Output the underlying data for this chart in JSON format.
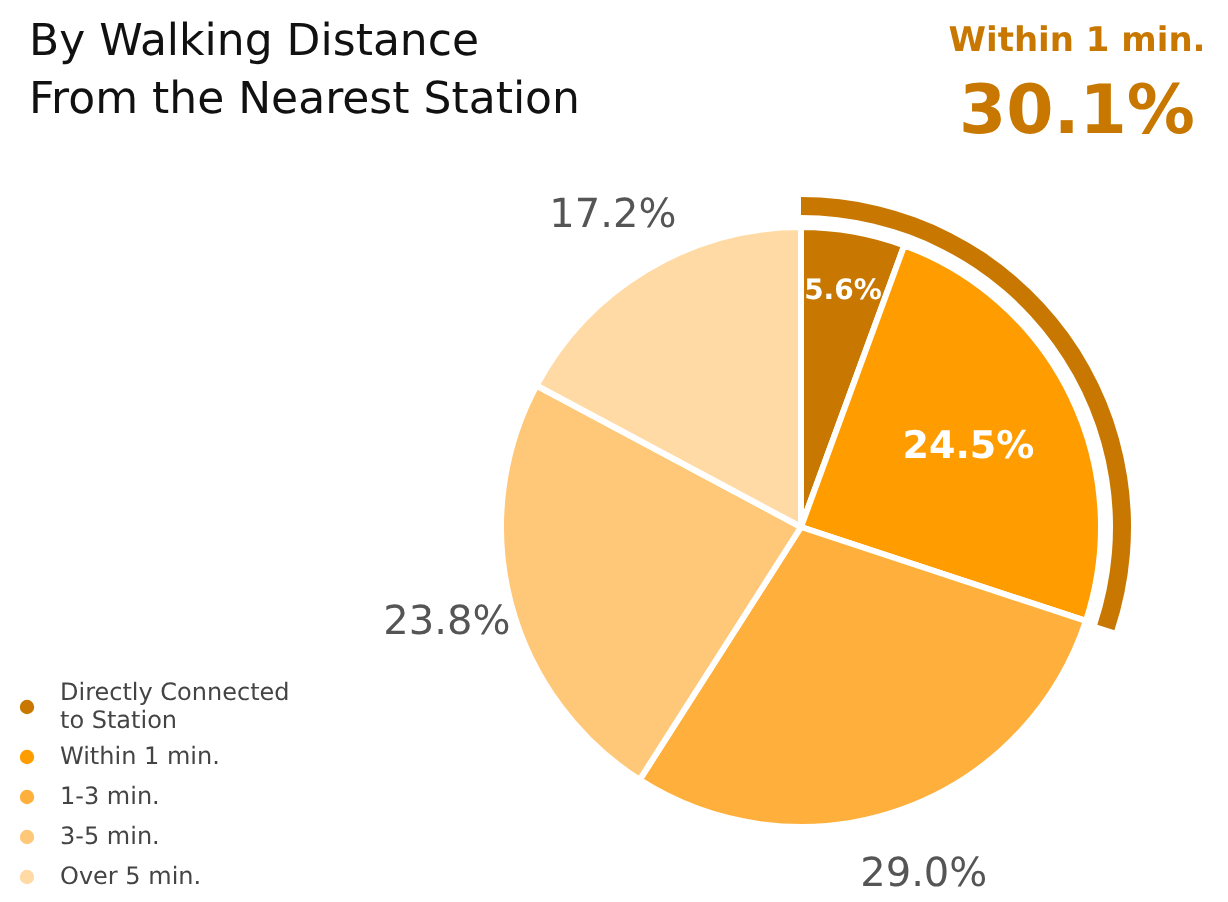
{
  "chart_data": {
    "type": "pie",
    "title": "By Walking Distance\nFrom the Nearest Station",
    "categories": [
      "Directly Connected\nto Station",
      "Within 1 min.",
      "1-3 min.",
      "3-5 min.",
      "Over 5 min."
    ],
    "values": [
      5.6,
      24.5,
      29.0,
      23.8,
      17.2
    ],
    "colors": [
      "#c87800",
      "#ff9c00",
      "#ffb03c",
      "#ffc878",
      "#ffdaa5"
    ],
    "value_labels": [
      "5.6%",
      "24.5%",
      "29.0%",
      "23.8%",
      "17.2%"
    ],
    "annotations": [
      "Within 1 min.",
      "30.1%"
    ],
    "legend": "bottom left"
  }
}
